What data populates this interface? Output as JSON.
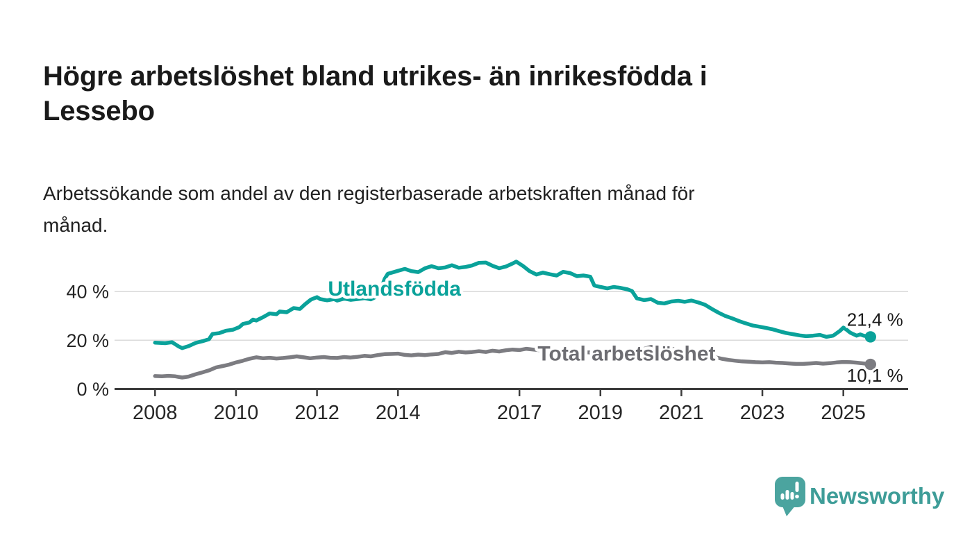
{
  "title": "Högre arbetslöshet bland utrikes- än inrikesfödda i Lessebo",
  "subtitle": "Arbetssökande som andel av den registerbaserade arbetskraften månad för månad.",
  "branding": {
    "logo_text": "Newsworthy",
    "logo_icon": "speech-bubble-bar-chart-icon",
    "logo_bubble_color": "#4ba49f",
    "logo_text_color": "#3e9d98"
  },
  "colors": {
    "title_text": "#1a1a1a",
    "axis_line": "#3c3c3c",
    "tick_label": "#262626",
    "gridline": "#dbdbdb",
    "value_label": "#1a1a1a"
  },
  "chart_data": {
    "type": "line",
    "title": "Högre arbetslöshet bland utrikes- än inrikesfödda i Lessebo",
    "subtitle": "Arbetssökande som andel av den registerbaserade arbetskraften månad för månad.",
    "x_axis": {
      "range": [
        2007,
        2026.6
      ],
      "ticks": [
        2008,
        2010,
        2012,
        2014,
        2017,
        2019,
        2021,
        2023,
        2025
      ]
    },
    "y_axis": {
      "range": [
        0,
        56
      ],
      "ticks": [
        0,
        20,
        40
      ],
      "gridlines": [
        20,
        40
      ],
      "tick_suffix": " %"
    },
    "legend_position": "inline-labels",
    "grid": true,
    "series": [
      {
        "id": "utlandsfodda",
        "name": "Utlandsfödda",
        "color": "#0aa29a",
        "label_color": "#0aa29a",
        "end_value": 21.4,
        "end_label": "21,4 %",
        "end_label_position": "above",
        "label_anchor": {
          "x": 2012.27,
          "y": 41.3
        },
        "points": [
          [
            2008.0,
            19.0
          ],
          [
            2008.25,
            18.8
          ],
          [
            2008.42,
            19.2
          ],
          [
            2008.58,
            17.5
          ],
          [
            2008.67,
            16.8
          ],
          [
            2008.83,
            17.6
          ],
          [
            2009.0,
            18.9
          ],
          [
            2009.17,
            19.6
          ],
          [
            2009.33,
            20.4
          ],
          [
            2009.42,
            22.6
          ],
          [
            2009.58,
            22.9
          ],
          [
            2009.75,
            23.9
          ],
          [
            2009.92,
            24.3
          ],
          [
            2010.08,
            25.4
          ],
          [
            2010.17,
            26.7
          ],
          [
            2010.33,
            27.3
          ],
          [
            2010.42,
            28.5
          ],
          [
            2010.5,
            28.1
          ],
          [
            2010.67,
            29.5
          ],
          [
            2010.83,
            31.0
          ],
          [
            2011.0,
            30.7
          ],
          [
            2011.08,
            31.8
          ],
          [
            2011.25,
            31.5
          ],
          [
            2011.42,
            33.2
          ],
          [
            2011.58,
            32.9
          ],
          [
            2011.7,
            34.7
          ],
          [
            2011.85,
            36.7
          ],
          [
            2012.0,
            37.7
          ],
          [
            2012.08,
            36.9
          ],
          [
            2012.25,
            36.4
          ],
          [
            2012.42,
            36.9
          ],
          [
            2012.5,
            36.3
          ],
          [
            2012.67,
            37.1
          ],
          [
            2012.83,
            36.6
          ],
          [
            2013.0,
            36.9
          ],
          [
            2013.17,
            37.3
          ],
          [
            2013.33,
            36.8
          ],
          [
            2013.5,
            38.2
          ],
          [
            2013.58,
            41.0
          ],
          [
            2013.67,
            45.2
          ],
          [
            2013.75,
            47.3
          ],
          [
            2013.92,
            48.1
          ],
          [
            2014.0,
            48.5
          ],
          [
            2014.17,
            49.3
          ],
          [
            2014.33,
            48.4
          ],
          [
            2014.5,
            48.0
          ],
          [
            2014.67,
            49.6
          ],
          [
            2014.83,
            50.4
          ],
          [
            2015.0,
            49.6
          ],
          [
            2015.17,
            49.9
          ],
          [
            2015.33,
            50.8
          ],
          [
            2015.5,
            49.8
          ],
          [
            2015.67,
            50.1
          ],
          [
            2015.83,
            50.7
          ],
          [
            2016.0,
            51.8
          ],
          [
            2016.17,
            51.9
          ],
          [
            2016.33,
            50.6
          ],
          [
            2016.5,
            49.6
          ],
          [
            2016.67,
            50.3
          ],
          [
            2016.83,
            51.5
          ],
          [
            2016.92,
            52.3
          ],
          [
            2017.08,
            50.6
          ],
          [
            2017.25,
            48.4
          ],
          [
            2017.42,
            47.0
          ],
          [
            2017.58,
            47.8
          ],
          [
            2017.75,
            47.1
          ],
          [
            2017.92,
            46.6
          ],
          [
            2018.08,
            48.1
          ],
          [
            2018.25,
            47.6
          ],
          [
            2018.42,
            46.3
          ],
          [
            2018.58,
            46.6
          ],
          [
            2018.75,
            46.1
          ],
          [
            2018.85,
            42.5
          ],
          [
            2019.0,
            41.9
          ],
          [
            2019.17,
            41.3
          ],
          [
            2019.33,
            41.9
          ],
          [
            2019.5,
            41.5
          ],
          [
            2019.67,
            40.9
          ],
          [
            2019.78,
            40.2
          ],
          [
            2019.9,
            37.2
          ],
          [
            2020.08,
            36.5
          ],
          [
            2020.25,
            36.9
          ],
          [
            2020.42,
            35.4
          ],
          [
            2020.58,
            35.1
          ],
          [
            2020.75,
            35.9
          ],
          [
            2020.92,
            36.2
          ],
          [
            2021.08,
            35.8
          ],
          [
            2021.25,
            36.3
          ],
          [
            2021.42,
            35.5
          ],
          [
            2021.58,
            34.6
          ],
          [
            2021.75,
            32.9
          ],
          [
            2021.92,
            31.3
          ],
          [
            2022.08,
            30.0
          ],
          [
            2022.25,
            29.0
          ],
          [
            2022.42,
            27.9
          ],
          [
            2022.58,
            27.0
          ],
          [
            2022.75,
            26.1
          ],
          [
            2022.92,
            25.6
          ],
          [
            2023.08,
            25.1
          ],
          [
            2023.25,
            24.5
          ],
          [
            2023.42,
            23.7
          ],
          [
            2023.58,
            23.0
          ],
          [
            2023.75,
            22.5
          ],
          [
            2023.92,
            22.0
          ],
          [
            2024.08,
            21.7
          ],
          [
            2024.25,
            21.9
          ],
          [
            2024.42,
            22.2
          ],
          [
            2024.58,
            21.4
          ],
          [
            2024.75,
            21.9
          ],
          [
            2024.92,
            23.9
          ],
          [
            2025.0,
            25.2
          ],
          [
            2025.08,
            24.3
          ],
          [
            2025.17,
            23.1
          ],
          [
            2025.33,
            21.9
          ],
          [
            2025.42,
            22.4
          ],
          [
            2025.5,
            21.9
          ],
          [
            2025.67,
            21.4
          ]
        ]
      },
      {
        "id": "total-arbetsloshet",
        "name": "Total arbetslöshet",
        "color": "#7c7c81",
        "label_color": "#6d6d72",
        "end_value": 10.1,
        "end_label": "10,1 %",
        "end_label_position": "below",
        "label_anchor": {
          "x": 2017.45,
          "y": 14.7
        },
        "points": [
          [
            2008.0,
            5.3
          ],
          [
            2008.17,
            5.2
          ],
          [
            2008.33,
            5.4
          ],
          [
            2008.5,
            5.2
          ],
          [
            2008.67,
            4.7
          ],
          [
            2008.83,
            5.1
          ],
          [
            2009.0,
            6.0
          ],
          [
            2009.17,
            6.8
          ],
          [
            2009.33,
            7.6
          ],
          [
            2009.5,
            8.8
          ],
          [
            2009.67,
            9.4
          ],
          [
            2009.83,
            10.0
          ],
          [
            2010.0,
            10.9
          ],
          [
            2010.17,
            11.6
          ],
          [
            2010.33,
            12.4
          ],
          [
            2010.5,
            13.0
          ],
          [
            2010.67,
            12.6
          ],
          [
            2010.83,
            12.8
          ],
          [
            2011.0,
            12.5
          ],
          [
            2011.17,
            12.7
          ],
          [
            2011.33,
            13.0
          ],
          [
            2011.5,
            13.4
          ],
          [
            2011.67,
            13.0
          ],
          [
            2011.83,
            12.6
          ],
          [
            2012.0,
            12.9
          ],
          [
            2012.17,
            13.1
          ],
          [
            2012.33,
            12.8
          ],
          [
            2012.5,
            12.7
          ],
          [
            2012.67,
            13.1
          ],
          [
            2012.83,
            12.9
          ],
          [
            2013.0,
            13.2
          ],
          [
            2013.17,
            13.6
          ],
          [
            2013.33,
            13.4
          ],
          [
            2013.5,
            13.9
          ],
          [
            2013.67,
            14.3
          ],
          [
            2013.83,
            14.4
          ],
          [
            2014.0,
            14.5
          ],
          [
            2014.17,
            14.0
          ],
          [
            2014.33,
            13.8
          ],
          [
            2014.5,
            14.1
          ],
          [
            2014.67,
            13.9
          ],
          [
            2014.83,
            14.2
          ],
          [
            2015.0,
            14.4
          ],
          [
            2015.17,
            15.1
          ],
          [
            2015.33,
            14.8
          ],
          [
            2015.5,
            15.3
          ],
          [
            2015.67,
            15.0
          ],
          [
            2015.83,
            15.2
          ],
          [
            2016.0,
            15.5
          ],
          [
            2016.17,
            15.2
          ],
          [
            2016.33,
            15.7
          ],
          [
            2016.5,
            15.4
          ],
          [
            2016.67,
            15.9
          ],
          [
            2016.83,
            16.2
          ],
          [
            2017.0,
            16.0
          ],
          [
            2017.17,
            16.5
          ],
          [
            2017.33,
            16.2
          ],
          [
            2017.5,
            15.9
          ],
          [
            2017.67,
            15.6
          ],
          [
            2017.83,
            15.4
          ],
          [
            2018.0,
            15.2
          ],
          [
            2018.25,
            15.5
          ],
          [
            2018.5,
            15.1
          ],
          [
            2018.75,
            15.0
          ],
          [
            2019.0,
            15.3
          ],
          [
            2019.25,
            15.6
          ],
          [
            2019.5,
            15.4
          ],
          [
            2019.75,
            15.7
          ],
          [
            2020.0,
            16.1
          ],
          [
            2020.25,
            17.3
          ],
          [
            2020.5,
            17.0
          ],
          [
            2020.75,
            16.5
          ],
          [
            2021.0,
            16.1
          ],
          [
            2021.25,
            15.3
          ],
          [
            2021.5,
            14.4
          ],
          [
            2021.75,
            13.4
          ],
          [
            2022.0,
            12.4
          ],
          [
            2022.17,
            11.9
          ],
          [
            2022.33,
            11.6
          ],
          [
            2022.5,
            11.3
          ],
          [
            2022.67,
            11.2
          ],
          [
            2022.83,
            11.0
          ],
          [
            2023.0,
            10.9
          ],
          [
            2023.17,
            11.0
          ],
          [
            2023.33,
            10.8
          ],
          [
            2023.5,
            10.7
          ],
          [
            2023.67,
            10.5
          ],
          [
            2023.83,
            10.3
          ],
          [
            2024.0,
            10.3
          ],
          [
            2024.17,
            10.5
          ],
          [
            2024.33,
            10.7
          ],
          [
            2024.5,
            10.4
          ],
          [
            2024.67,
            10.6
          ],
          [
            2024.83,
            10.9
          ],
          [
            2025.0,
            11.1
          ],
          [
            2025.17,
            11.0
          ],
          [
            2025.33,
            10.8
          ],
          [
            2025.5,
            10.5
          ],
          [
            2025.67,
            10.1
          ]
        ]
      }
    ]
  }
}
